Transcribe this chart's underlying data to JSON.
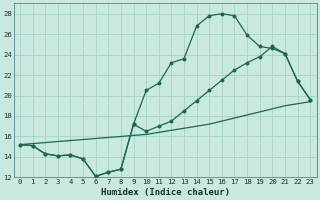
{
  "bg_color": "#c8e8e0",
  "grid_color": "#aad4cc",
  "line_color": "#1a6655",
  "xlabel": "Humidex (Indice chaleur)",
  "xlim": [
    -0.5,
    23.5
  ],
  "ylim": [
    12,
    29
  ],
  "xticks": [
    0,
    1,
    2,
    3,
    4,
    5,
    6,
    7,
    8,
    9,
    10,
    11,
    12,
    13,
    14,
    15,
    16,
    17,
    18,
    19,
    20,
    21,
    22,
    23
  ],
  "yticks": [
    12,
    14,
    16,
    18,
    20,
    22,
    24,
    26,
    28
  ],
  "curve1_x": [
    0,
    1,
    2,
    3,
    4,
    5,
    6,
    7,
    8,
    9,
    10,
    11,
    12,
    13,
    14,
    15,
    16,
    17,
    18,
    19,
    20,
    21,
    22,
    23
  ],
  "curve1_y": [
    15.2,
    15.1,
    14.3,
    14.1,
    14.2,
    13.8,
    12.1,
    12.5,
    12.8,
    17.2,
    20.5,
    21.2,
    23.2,
    23.6,
    26.8,
    27.8,
    28.0,
    27.8,
    25.9,
    24.8,
    24.6,
    24.1,
    21.4,
    19.6
  ],
  "curve2_x": [
    0,
    1,
    2,
    3,
    4,
    5,
    6,
    7,
    8,
    9,
    10,
    11,
    12,
    13,
    14,
    15,
    16,
    17,
    18,
    19,
    20,
    21,
    22,
    23
  ],
  "curve2_y": [
    15.2,
    15.1,
    14.3,
    14.1,
    14.2,
    13.8,
    12.1,
    12.5,
    12.8,
    17.2,
    16.5,
    17.0,
    17.5,
    18.5,
    19.5,
    20.5,
    21.5,
    22.5,
    23.2,
    23.8,
    24.8,
    24.1,
    21.4,
    19.6
  ],
  "curve3_x": [
    0,
    1,
    2,
    3,
    4,
    5,
    6,
    7,
    8,
    9,
    10,
    11,
    12,
    13,
    14,
    15,
    16,
    17,
    18,
    19,
    20,
    21,
    22,
    23
  ],
  "curve3_y": [
    15.2,
    15.3,
    15.4,
    15.5,
    15.6,
    15.7,
    15.8,
    15.9,
    16.0,
    16.1,
    16.2,
    16.4,
    16.6,
    16.8,
    17.0,
    17.2,
    17.5,
    17.8,
    18.1,
    18.4,
    18.7,
    19.0,
    19.2,
    19.4
  ]
}
